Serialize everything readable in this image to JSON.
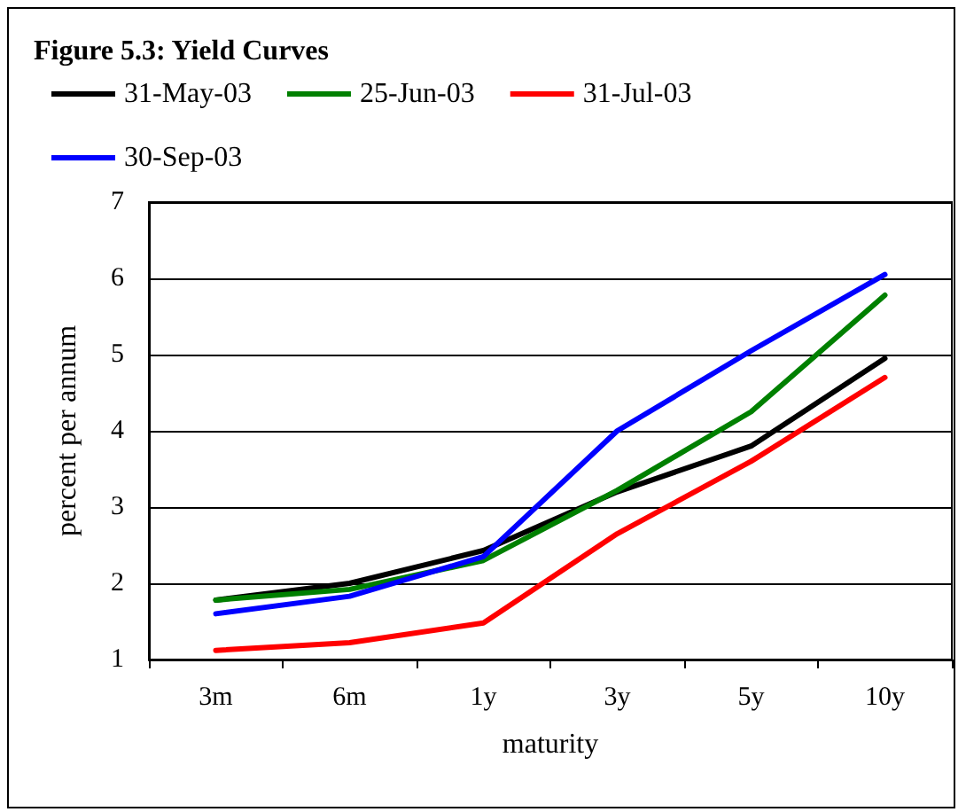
{
  "chart_data": {
    "type": "line",
    "title": "Figure 5.3: Yield Curves",
    "xlabel": "maturity",
    "ylabel": "percent per annum",
    "categories": [
      "3m",
      "6m",
      "1y",
      "3y",
      "5y",
      "10y"
    ],
    "series": [
      {
        "name": "31-May-03",
        "color": "#000000",
        "values": [
          1.78,
          2.0,
          2.43,
          3.2,
          3.8,
          4.95
        ]
      },
      {
        "name": "25-Jun-03",
        "color": "#008000",
        "values": [
          1.78,
          1.92,
          2.3,
          3.22,
          4.25,
          5.78
        ]
      },
      {
        "name": "31-Jul-03",
        "color": "#ff0000",
        "values": [
          1.12,
          1.22,
          1.48,
          2.65,
          3.6,
          4.7
        ]
      },
      {
        "name": "30-Sep-03",
        "color": "#0000ff",
        "values": [
          1.6,
          1.83,
          2.35,
          4.0,
          5.05,
          6.05
        ]
      }
    ],
    "ylim": [
      1,
      7
    ],
    "yticks": [
      1,
      2,
      3,
      4,
      5,
      6,
      7
    ],
    "grid": "y",
    "legend": "top left",
    "marker": "none",
    "line_style": "solid"
  }
}
